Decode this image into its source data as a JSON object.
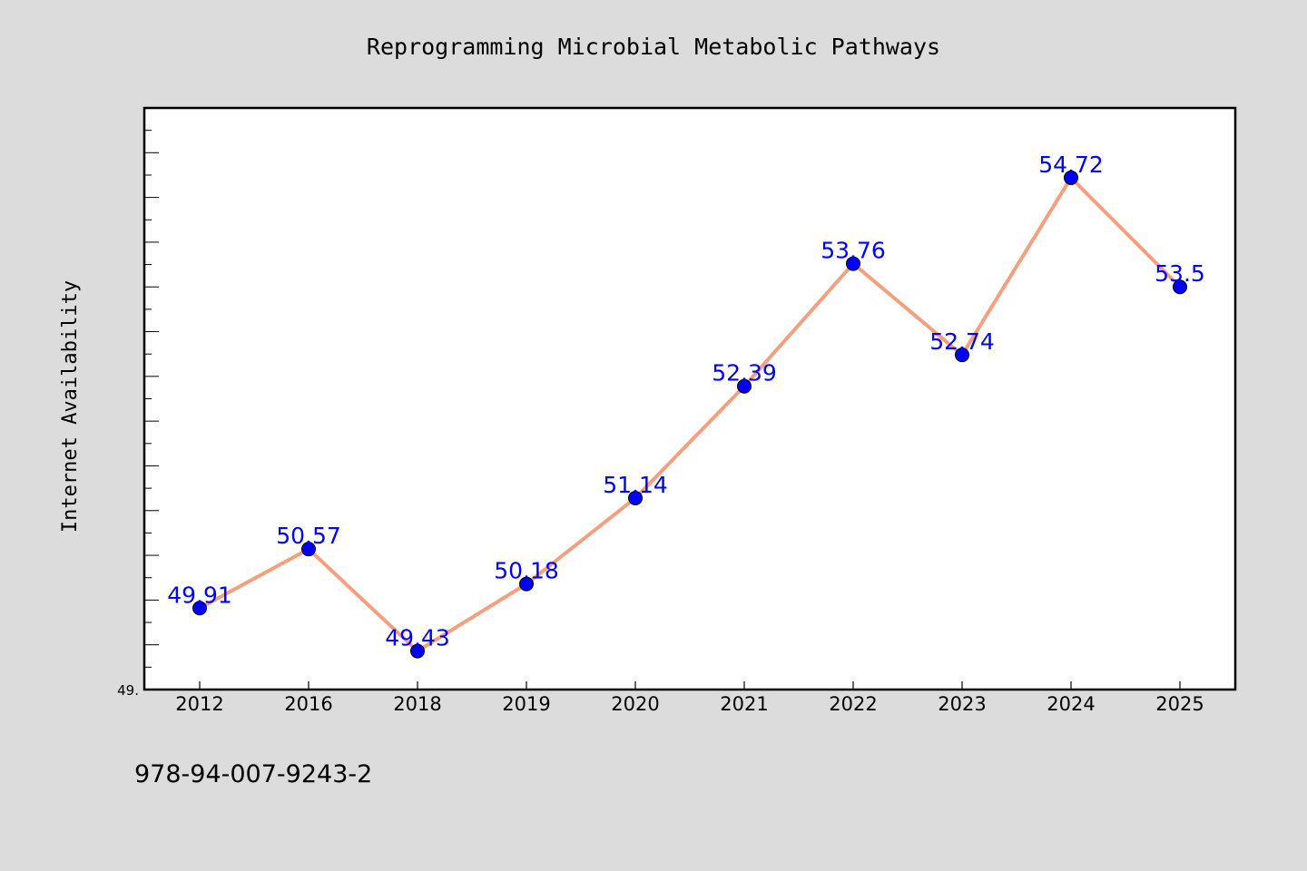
{
  "chart_data": {
    "type": "line",
    "title": "Reprogramming Microbial Metabolic Pathways",
    "xlabel": "",
    "ylabel": "Internet Availability",
    "categories": [
      "2012",
      "2016",
      "2018",
      "2019",
      "2020",
      "2021",
      "2022",
      "2023",
      "2024",
      "2025"
    ],
    "series": [
      {
        "values": [
          49.91,
          50.57,
          49.43,
          50.18,
          51.14,
          52.39,
          53.76,
          52.74,
          54.72,
          53.5
        ]
      }
    ],
    "data_labels": [
      "49.91",
      "50.57",
      "49.43",
      "50.18",
      "51.14",
      "52.39",
      "53.76",
      "52.74",
      "54.72",
      "53.5"
    ],
    "ylim": [
      49.0,
      55.5
    ],
    "ytick_labels": [
      "49."
    ],
    "grid": false,
    "legend": "none",
    "colors": {
      "line": "#f4a07f",
      "marker": "#0000ff",
      "data_label": "#0000ff",
      "background": "#dcdcdc",
      "plot_background": "#ffffff"
    }
  },
  "footer": {
    "isbn": "978-94-007-9243-2"
  }
}
